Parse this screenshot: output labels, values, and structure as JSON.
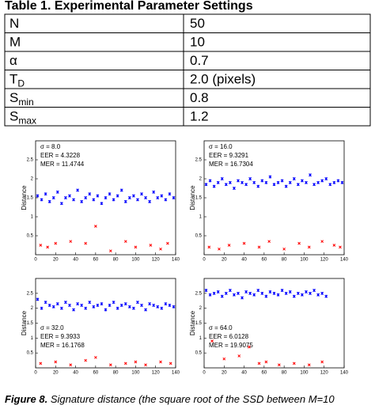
{
  "table": {
    "title": "Table 1. Experimental Parameter Settings",
    "rows": [
      [
        {
          "main": "N"
        },
        "50"
      ],
      [
        {
          "main": "M"
        },
        "10"
      ],
      [
        {
          "main": "α"
        },
        "0.7"
      ],
      [
        {
          "main": "T",
          "sub": "D"
        },
        "2.0 (pixels)"
      ],
      [
        {
          "main": "S",
          "sub": "min"
        },
        "0.8"
      ],
      [
        {
          "main": "S",
          "sub": "max"
        },
        "1.2"
      ]
    ]
  },
  "chart_data": [
    {
      "type": "scatter",
      "ylabel": "Distance",
      "annotation_corner": "upper left",
      "annotations": [
        "σ = 8.0",
        "EER = 4.3228",
        "MER = 11.4744"
      ],
      "xlim": [
        0,
        140
      ],
      "ylim": [
        0,
        3
      ],
      "xticks": [
        0,
        20,
        40,
        60,
        80,
        100,
        120,
        140
      ],
      "yticks": [
        0.5,
        1,
        1.5,
        2,
        2.5
      ],
      "series": [
        {
          "color": "#0000ff",
          "x": [
            2,
            6,
            10,
            14,
            18,
            22,
            26,
            30,
            34,
            38,
            42,
            46,
            50,
            54,
            58,
            62,
            66,
            70,
            74,
            78,
            82,
            86,
            90,
            94,
            98,
            102,
            106,
            110,
            114,
            118,
            122,
            126,
            130,
            134,
            138
          ],
          "values": [
            1.55,
            1.45,
            1.6,
            1.4,
            1.5,
            1.65,
            1.35,
            1.5,
            1.55,
            1.45,
            1.7,
            1.4,
            1.5,
            1.6,
            1.45,
            1.55,
            1.35,
            1.5,
            1.6,
            1.45,
            1.55,
            1.7,
            1.4,
            1.5,
            1.55,
            1.45,
            1.6,
            1.5,
            1.4,
            1.65,
            1.5,
            1.55,
            1.45,
            1.6,
            1.5
          ]
        },
        {
          "color": "#ff0000",
          "x": [
            5,
            12,
            20,
            35,
            50,
            60,
            75,
            90,
            100,
            115,
            125,
            132
          ],
          "values": [
            0.25,
            0.2,
            0.3,
            0.35,
            0.3,
            0.75,
            0.1,
            0.35,
            0.2,
            0.25,
            0.15,
            0.3
          ]
        }
      ]
    },
    {
      "type": "scatter",
      "ylabel": "Distance",
      "annotation_corner": "upper left",
      "annotations": [
        "σ = 16.0",
        "EER = 9.3291",
        "MER = 16.7304"
      ],
      "xlim": [
        0,
        140
      ],
      "ylim": [
        0,
        3
      ],
      "xticks": [
        0,
        20,
        40,
        60,
        80,
        100,
        120,
        140
      ],
      "yticks": [
        0.5,
        1,
        1.5,
        2,
        2.5
      ],
      "series": [
        {
          "color": "#0000ff",
          "x": [
            2,
            6,
            10,
            14,
            18,
            22,
            26,
            30,
            34,
            38,
            42,
            46,
            50,
            54,
            58,
            62,
            66,
            70,
            74,
            78,
            82,
            86,
            90,
            94,
            98,
            102,
            106,
            110,
            114,
            118,
            122,
            126,
            130,
            134,
            138
          ],
          "values": [
            1.85,
            1.95,
            1.8,
            1.9,
            2.0,
            1.85,
            1.9,
            1.75,
            1.95,
            1.9,
            1.85,
            2.0,
            1.9,
            1.8,
            1.95,
            1.9,
            2.05,
            1.85,
            1.9,
            1.95,
            1.8,
            1.9,
            2.0,
            1.85,
            1.95,
            1.9,
            2.1,
            1.85,
            1.9,
            1.95,
            2.0,
            1.85,
            1.9,
            1.95,
            1.9
          ]
        },
        {
          "color": "#ff0000",
          "x": [
            5,
            15,
            25,
            40,
            55,
            65,
            80,
            95,
            105,
            118,
            130,
            136
          ],
          "values": [
            0.2,
            0.15,
            0.25,
            0.3,
            0.2,
            0.35,
            0.15,
            0.3,
            0.2,
            0.35,
            0.25,
            0.2
          ]
        }
      ]
    },
    {
      "type": "scatter",
      "ylabel": "Distance",
      "annotation_corner": "lower left",
      "annotations": [
        "σ = 32.0",
        "EER = 9.3933",
        "MER = 16.1768"
      ],
      "xlim": [
        0,
        140
      ],
      "ylim": [
        0,
        3
      ],
      "xticks": [
        0,
        20,
        40,
        60,
        80,
        100,
        120,
        140
      ],
      "yticks": [
        0.5,
        1,
        1.5,
        2,
        2.5
      ],
      "series": [
        {
          "color": "#0000ff",
          "x": [
            2,
            6,
            10,
            14,
            18,
            22,
            26,
            30,
            34,
            38,
            42,
            46,
            50,
            54,
            58,
            62,
            66,
            70,
            74,
            78,
            82,
            86,
            90,
            94,
            98,
            102,
            106,
            110,
            114,
            118,
            122,
            126,
            130,
            134,
            138
          ],
          "values": [
            2.3,
            2.0,
            2.2,
            2.1,
            2.05,
            2.15,
            2.0,
            2.2,
            2.1,
            1.95,
            2.15,
            2.1,
            2.0,
            2.2,
            2.05,
            2.1,
            2.15,
            1.95,
            2.1,
            2.2,
            2.0,
            2.1,
            2.15,
            2.05,
            2.0,
            2.2,
            2.1,
            1.95,
            2.15,
            2.1,
            2.05,
            2.0,
            2.15,
            2.1,
            2.05
          ]
        },
        {
          "color": "#ff0000",
          "x": [
            5,
            20,
            35,
            50,
            60,
            75,
            90,
            100,
            110,
            125,
            135
          ],
          "values": [
            0.15,
            0.2,
            0.1,
            0.25,
            0.35,
            0.1,
            0.15,
            0.2,
            0.1,
            0.2,
            0.15
          ]
        }
      ]
    },
    {
      "type": "scatter",
      "ylabel": "Distance",
      "annotation_corner": "lower left",
      "annotations": [
        "σ = 64.0",
        "EER = 6.0128",
        "MER = 19.9075"
      ],
      "xlim": [
        0,
        140
      ],
      "ylim": [
        0,
        3
      ],
      "xticks": [
        0,
        20,
        40,
        60,
        80,
        100,
        120,
        140
      ],
      "yticks": [
        0.5,
        1,
        1.5,
        2,
        2.5
      ],
      "series": [
        {
          "color": "#0000ff",
          "x": [
            2,
            6,
            10,
            14,
            18,
            22,
            26,
            30,
            34,
            38,
            42,
            46,
            50,
            54,
            58,
            62,
            66,
            70,
            74,
            78,
            82,
            86,
            90,
            94,
            98,
            102,
            106,
            110,
            114,
            118,
            122
          ],
          "values": [
            2.6,
            2.45,
            2.5,
            2.55,
            2.4,
            2.5,
            2.6,
            2.45,
            2.5,
            2.35,
            2.55,
            2.5,
            2.45,
            2.6,
            2.5,
            2.4,
            2.55,
            2.5,
            2.45,
            2.6,
            2.5,
            2.55,
            2.4,
            2.5,
            2.45,
            2.55,
            2.5,
            2.6,
            2.45,
            2.5,
            2.4
          ]
        },
        {
          "color": "#ff0000",
          "x": [
            8,
            20,
            35,
            45,
            55,
            62,
            75,
            90,
            105,
            118
          ],
          "values": [
            0.9,
            0.3,
            0.4,
            0.7,
            0.15,
            0.2,
            0.1,
            0.15,
            0.1,
            0.2
          ]
        }
      ]
    }
  ],
  "caption": {
    "label": "Figure 8.",
    "text": "Signature distance (the square root of the SSD between M=10"
  }
}
